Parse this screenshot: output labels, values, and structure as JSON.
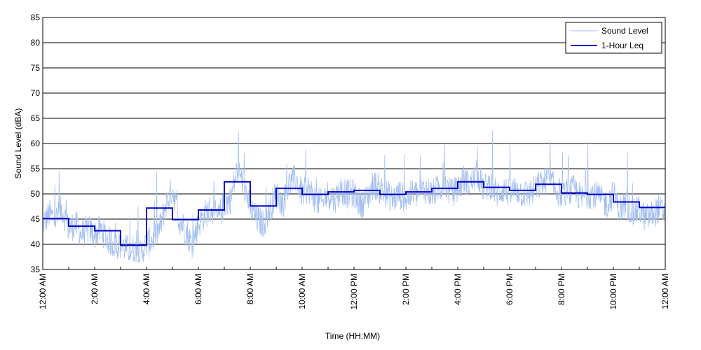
{
  "chart_data": {
    "type": "line",
    "xlabel": "Time (HH:MM)",
    "ylabel": "Sound Level (dBA)",
    "ylim": [
      35,
      85
    ],
    "xlim_hours": [
      0,
      24
    ],
    "y_ticks": [
      35,
      40,
      45,
      50,
      55,
      60,
      65,
      70,
      75,
      80,
      85
    ],
    "x_tick_labels": [
      "12:00 AM",
      "2:00 AM",
      "4:00 AM",
      "6:00 AM",
      "8:00 AM",
      "10:00 AM",
      "12:00 PM",
      "2:00 PM",
      "4:00 PM",
      "6:00 PM",
      "8:00 PM",
      "10:00 PM",
      "12:00 AM"
    ],
    "grid": "horizontal",
    "legend_position": "top-right",
    "series": [
      {
        "name": "Sound Level",
        "color": "#a4bff0",
        "style": "thin-noisy-line",
        "x_hours": [
          0,
          0.25,
          0.5,
          0.75,
          1,
          1.25,
          1.5,
          1.75,
          2,
          2.25,
          2.5,
          2.75,
          3,
          3.25,
          3.5,
          3.75,
          4,
          4.25,
          4.5,
          4.75,
          5,
          5.25,
          5.5,
          5.75,
          6,
          6.25,
          6.5,
          6.75,
          7,
          7.25,
          7.5,
          7.75,
          8,
          8.25,
          8.5,
          8.75,
          9,
          9.25,
          9.5,
          9.75,
          10,
          10.25,
          10.5,
          10.75,
          11,
          11.25,
          11.5,
          11.75,
          12,
          12.25,
          12.5,
          12.75,
          13,
          13.25,
          13.5,
          13.75,
          14,
          14.25,
          14.5,
          14.75,
          15,
          15.25,
          15.5,
          15.75,
          16,
          16.25,
          16.5,
          16.75,
          17,
          17.25,
          17.5,
          17.75,
          18,
          18.25,
          18.5,
          18.75,
          19,
          19.25,
          19.5,
          19.75,
          20,
          20.25,
          20.5,
          20.75,
          21,
          21.25,
          21.5,
          21.75,
          22,
          22.25,
          22.5,
          22.75,
          23,
          23.25,
          23.5,
          23.75,
          24
        ],
        "values": [
          44,
          46,
          45,
          47,
          43,
          44,
          42,
          43,
          42,
          43,
          41,
          40,
          40,
          39,
          39,
          38,
          40,
          41,
          43,
          48,
          51,
          45,
          43,
          40,
          44,
          46,
          47,
          45,
          48,
          49,
          55,
          52,
          47,
          45,
          44,
          47,
          50,
          48,
          52,
          53,
          50,
          51,
          49,
          48,
          50,
          49,
          51,
          50,
          50,
          48,
          49,
          52,
          51,
          50,
          49,
          50,
          49,
          50,
          50,
          51,
          50,
          51,
          52,
          50,
          51,
          53,
          52,
          54,
          51,
          52,
          50,
          51,
          50,
          51,
          50,
          50,
          51,
          52,
          53,
          51,
          50,
          50,
          51,
          49,
          50,
          50,
          49,
          48,
          50,
          47,
          48,
          46,
          47,
          45,
          46,
          47,
          46
        ]
      },
      {
        "name": "1-Hour Leq",
        "color": "#0000cc",
        "style": "step",
        "hour_start": [
          0,
          1,
          2,
          3,
          4,
          5,
          6,
          7,
          8,
          9,
          10,
          11,
          12,
          13,
          14,
          15,
          16,
          17,
          18,
          19,
          20,
          21,
          22,
          23
        ],
        "values": [
          45.1,
          43.6,
          42.7,
          39.8,
          47.2,
          44.9,
          46.8,
          52.4,
          47.6,
          51.1,
          49.9,
          50.4,
          50.7,
          49.9,
          50.4,
          51.1,
          52.4,
          51.3,
          50.7,
          51.9,
          50.2,
          49.9,
          48.4,
          47.3
        ]
      }
    ]
  }
}
